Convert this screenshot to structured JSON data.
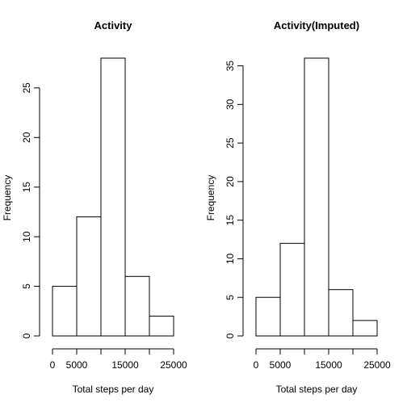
{
  "chart_data": [
    {
      "type": "bar",
      "title": "Activity",
      "xlabel": "Total steps per day",
      "ylabel": "Frequency",
      "bins": [
        [
          0,
          5000
        ],
        [
          5000,
          10000
        ],
        [
          10000,
          15000
        ],
        [
          15000,
          20000
        ],
        [
          20000,
          25000
        ]
      ],
      "values": [
        5,
        12,
        28,
        6,
        2
      ],
      "xlim": [
        0,
        25000
      ],
      "ylim": [
        0,
        28
      ],
      "xticks": [
        0,
        5000,
        10000,
        15000,
        20000,
        25000
      ],
      "xtick_labels": [
        "0",
        "5000",
        "",
        "15000",
        "",
        "25000"
      ],
      "yticks": [
        0,
        5,
        10,
        15,
        20,
        25
      ],
      "ytick_labels": [
        "0",
        "5",
        "10",
        "15",
        "20",
        "25"
      ],
      "grid": false
    },
    {
      "type": "bar",
      "title": "Activity(Imputed)",
      "xlabel": "Total steps per day",
      "ylabel": "Frequency",
      "bins": [
        [
          0,
          5000
        ],
        [
          5000,
          10000
        ],
        [
          10000,
          15000
        ],
        [
          15000,
          20000
        ],
        [
          20000,
          25000
        ]
      ],
      "values": [
        5,
        12,
        36,
        6,
        2
      ],
      "xlim": [
        0,
        25000
      ],
      "ylim": [
        0,
        36
      ],
      "xticks": [
        0,
        5000,
        10000,
        15000,
        20000,
        25000
      ],
      "xtick_labels": [
        "0",
        "5000",
        "",
        "15000",
        "",
        "25000"
      ],
      "yticks": [
        0,
        5,
        10,
        15,
        20,
        25,
        30,
        35
      ],
      "ytick_labels": [
        "0",
        "5",
        "10",
        "15",
        "20",
        "25",
        "30",
        "35"
      ],
      "grid": false
    }
  ]
}
